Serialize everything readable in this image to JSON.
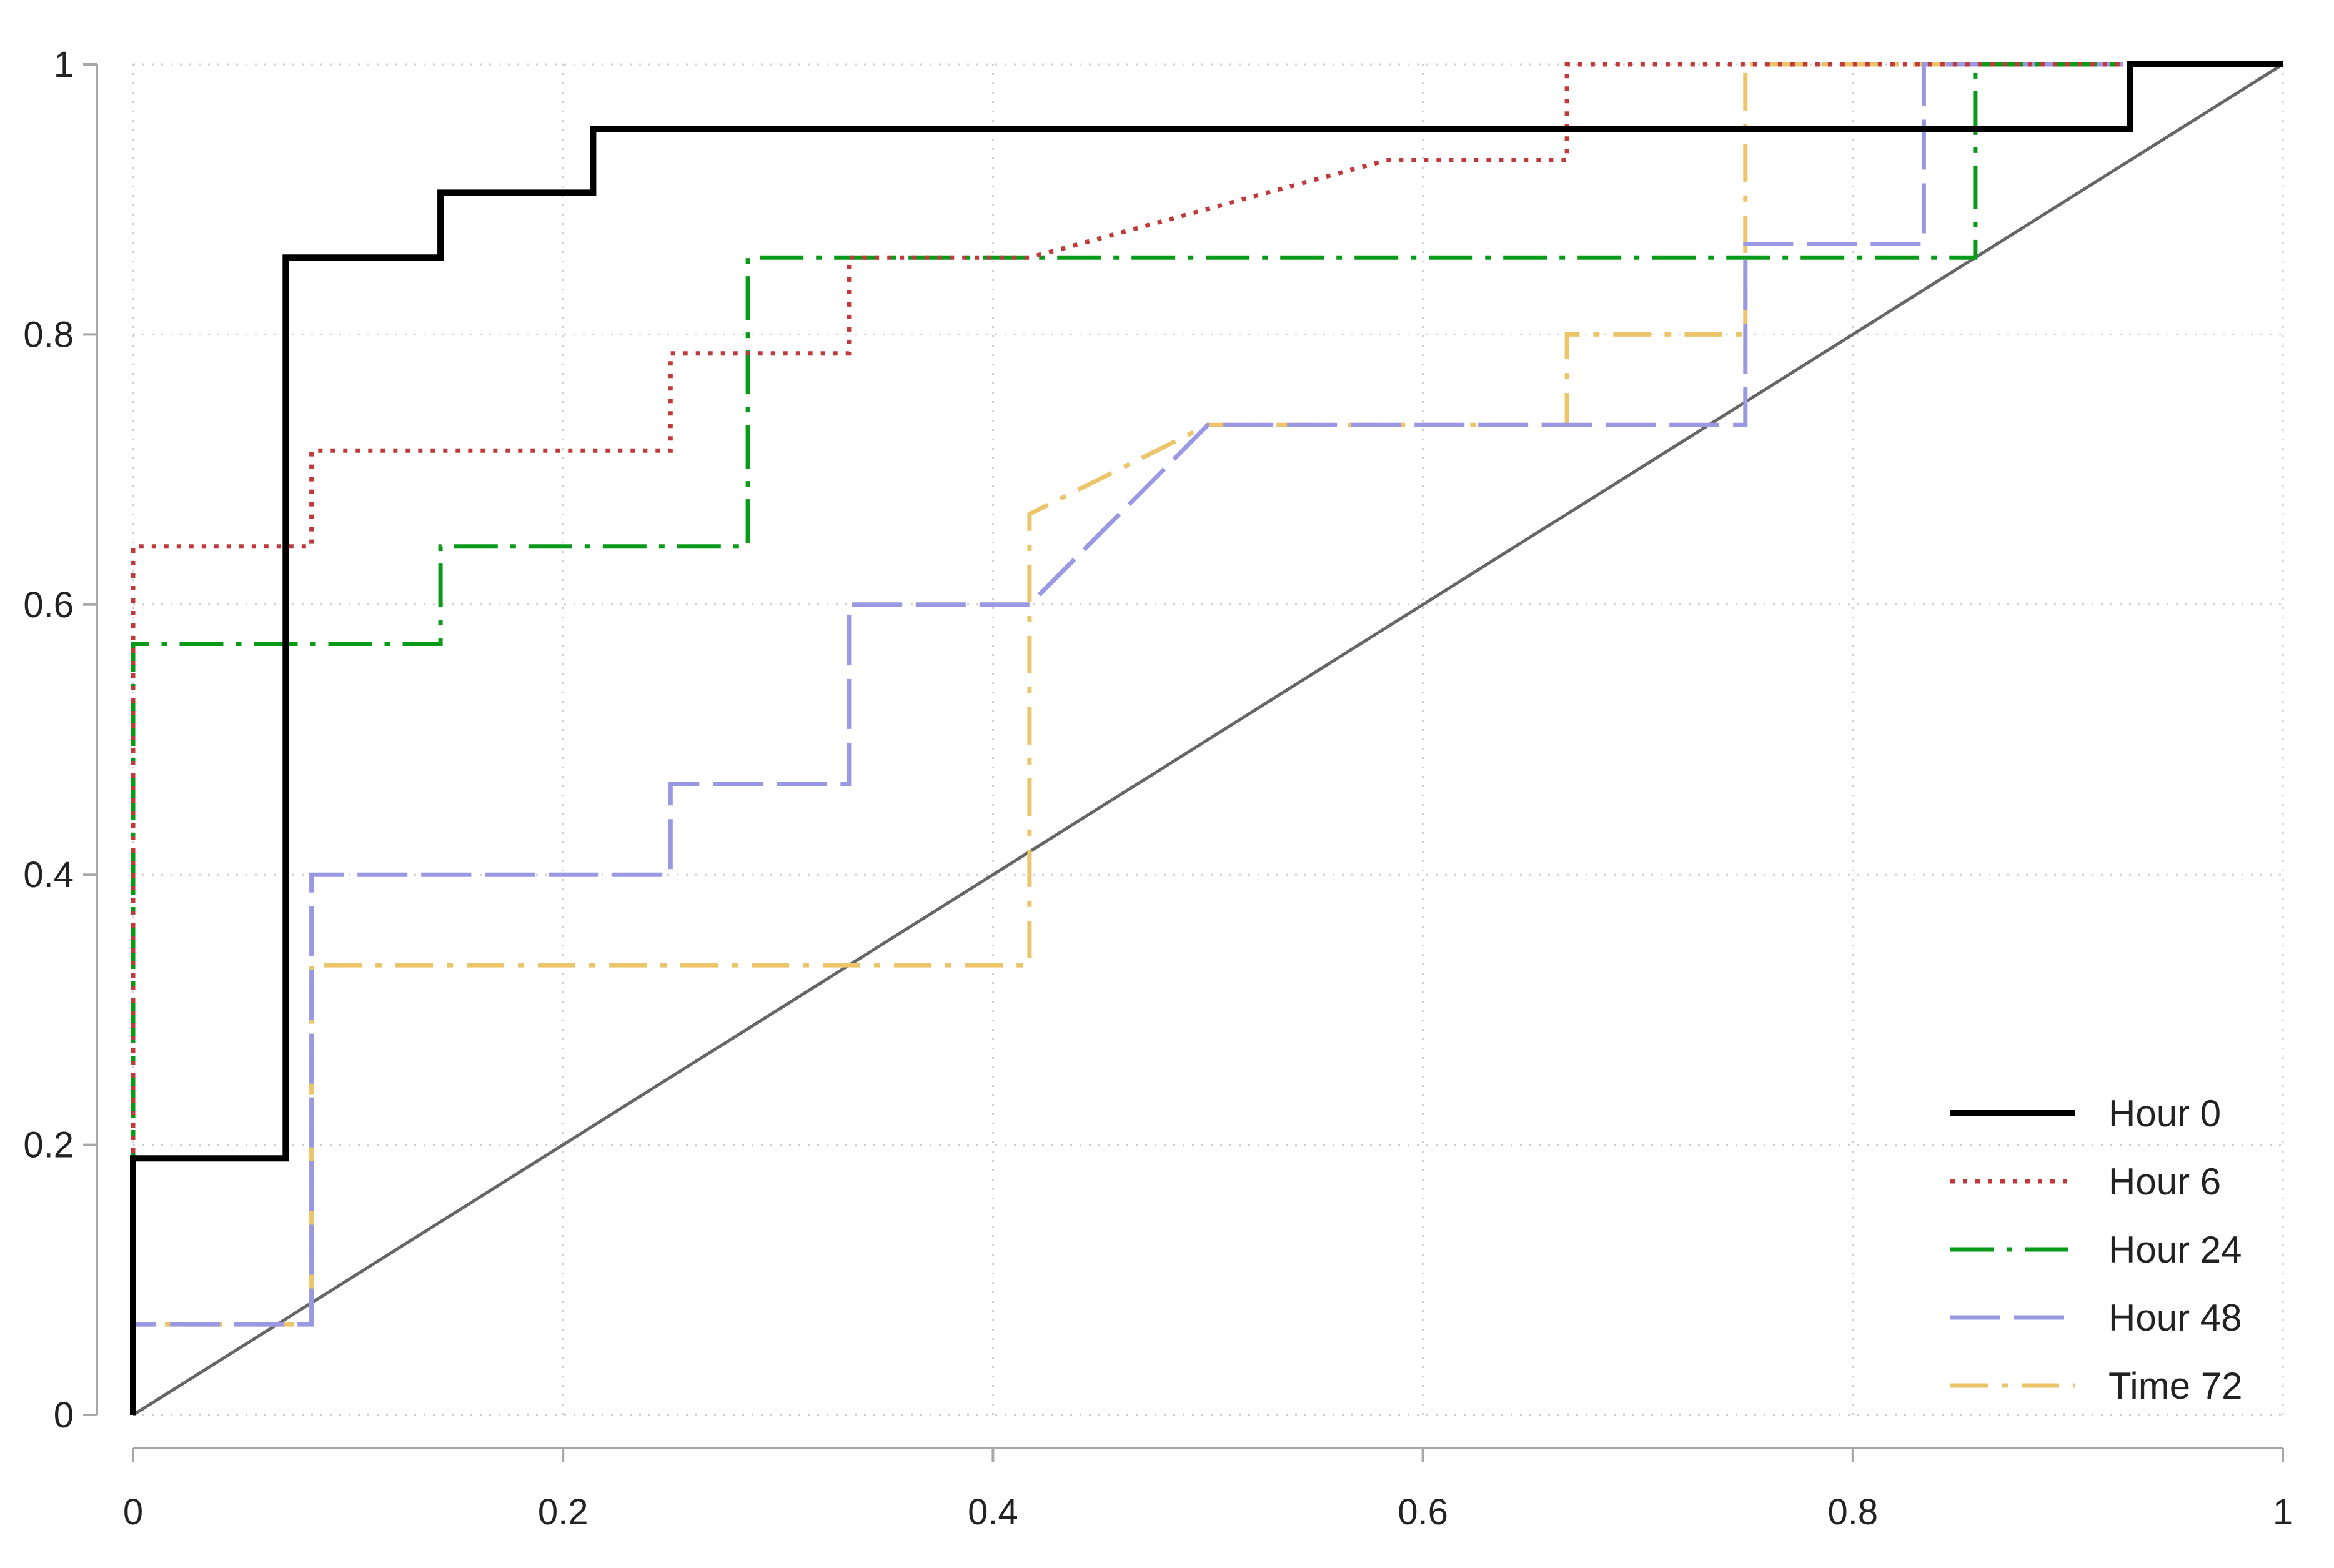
{
  "chart_data": {
    "type": "line",
    "title": "",
    "xlabel": "",
    "ylabel": "",
    "xlim": [
      0,
      1
    ],
    "ylim": [
      0,
      1
    ],
    "grid": true,
    "legend_position": "bottom-right",
    "x_ticks": [
      "0",
      "0.2",
      "0.4",
      "0.6",
      "0.8",
      "1"
    ],
    "y_ticks": [
      "0",
      "0.2",
      "0.4",
      "0.6",
      "0.8",
      "1"
    ],
    "reference_line": {
      "points": [
        [
          0,
          0
        ],
        [
          1,
          1
        ]
      ],
      "color": "#666666"
    },
    "series": [
      {
        "name": "Hour 0",
        "color": "#000000",
        "dash": "solid",
        "points": [
          [
            0,
            0
          ],
          [
            0,
            0.19
          ],
          [
            0.071,
            0.19
          ],
          [
            0.071,
            0.857
          ],
          [
            0.143,
            0.857
          ],
          [
            0.143,
            0.905
          ],
          [
            0.214,
            0.905
          ],
          [
            0.214,
            0.952
          ],
          [
            0.929,
            0.952
          ],
          [
            0.929,
            1
          ],
          [
            1,
            1
          ]
        ]
      },
      {
        "name": "Hour 6",
        "color": "#c0393b",
        "dash": "dotted",
        "points": [
          [
            0,
            0
          ],
          [
            0,
            0.643
          ],
          [
            0.083,
            0.643
          ],
          [
            0.083,
            0.714
          ],
          [
            0.25,
            0.714
          ],
          [
            0.25,
            0.786
          ],
          [
            0.333,
            0.786
          ],
          [
            0.333,
            0.857
          ],
          [
            0.417,
            0.857
          ],
          [
            0.583,
            0.929
          ],
          [
            0.667,
            0.929
          ],
          [
            0.667,
            1
          ],
          [
            1,
            1
          ]
        ]
      },
      {
        "name": "Hour 24",
        "color": "#0a9a1a",
        "dash": "dash-dot",
        "points": [
          [
            0,
            0
          ],
          [
            0,
            0.571
          ],
          [
            0.143,
            0.571
          ],
          [
            0.143,
            0.643
          ],
          [
            0.286,
            0.643
          ],
          [
            0.286,
            0.857
          ],
          [
            0.857,
            0.857
          ],
          [
            0.857,
            1
          ],
          [
            1,
            1
          ]
        ]
      },
      {
        "name": "Hour 48",
        "color": "#9a98e2",
        "dash": "long-dash",
        "points": [
          [
            0,
            0
          ],
          [
            0,
            0.067
          ],
          [
            0.083,
            0.067
          ],
          [
            0.083,
            0.4
          ],
          [
            0.25,
            0.4
          ],
          [
            0.25,
            0.467
          ],
          [
            0.333,
            0.467
          ],
          [
            0.333,
            0.6
          ],
          [
            0.417,
            0.6
          ],
          [
            0.5,
            0.733
          ],
          [
            0.75,
            0.733
          ],
          [
            0.75,
            0.867
          ],
          [
            0.833,
            0.867
          ],
          [
            0.833,
            1
          ],
          [
            1,
            1
          ]
        ]
      },
      {
        "name": "Time 72",
        "color": "#ecc56a",
        "dash": "long-dash-dot",
        "points": [
          [
            0,
            0
          ],
          [
            0,
            0.067
          ],
          [
            0.083,
            0.067
          ],
          [
            0.083,
            0.333
          ],
          [
            0.417,
            0.333
          ],
          [
            0.417,
            0.667
          ],
          [
            0.5,
            0.733
          ],
          [
            0.667,
            0.733
          ],
          [
            0.667,
            0.8
          ],
          [
            0.75,
            0.8
          ],
          [
            0.75,
            1
          ],
          [
            1,
            1
          ]
        ]
      }
    ]
  }
}
